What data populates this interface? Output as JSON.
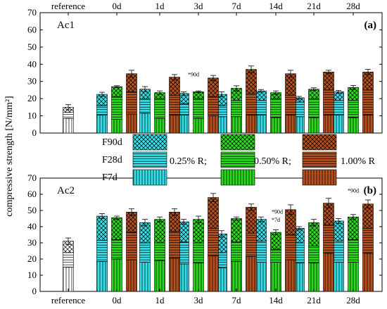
{
  "figure": {
    "ylabel": "compressive strength [N/mm²]",
    "groups": [
      "reference",
      "0d",
      "1d",
      "3d",
      "7d",
      "14d",
      "21d",
      "28d"
    ],
    "ylim": [
      0,
      70
    ],
    "yticks": [
      0,
      10,
      20,
      30,
      40,
      50,
      60,
      70
    ],
    "colors": {
      "0.25%R": "#33e0ea",
      "0.50%R": "#2ad81c",
      "1.00%R": "#b5501e",
      "reference": "#ffffff"
    }
  },
  "legend": {
    "rows": [
      "F90d",
      "F28d",
      "F7d"
    ],
    "items": [
      {
        "key": "0.25%R",
        "label": "0.25% R;"
      },
      {
        "key": "0.50%R",
        "label": "0.50% R;"
      },
      {
        "key": "1.00%R",
        "label": "1.00% R"
      }
    ]
  },
  "chart_data": [
    {
      "type": "bar",
      "stacked": true,
      "title": "Ac1",
      "panel_tag": "(a)",
      "categories": [
        "reference",
        "0d",
        "1d",
        "3d",
        "7d",
        "14d",
        "21d",
        "28d"
      ],
      "series": [
        {
          "name": "reference",
          "values": {
            "F7d": [
              8.5
            ],
            "F28d": [
              12
            ],
            "F90d": [
              15
            ]
          },
          "err": [
            1.5
          ]
        },
        {
          "name": "0.25% R",
          "values": {
            "F7d": [
              null,
              10.5,
              11.5,
              10.5,
              9.5,
              10.5,
              9.5,
              10.5
            ],
            "F28d": [
              null,
              16,
              20,
              17,
              16,
              19,
              18,
              19
            ],
            "F90d": [
              null,
              22.5,
              25.5,
              23,
              22.5,
              24.5,
              20.5,
              24
            ]
          },
          "err": [
            null,
            1.2,
            1.5,
            1,
            1.5,
            0.8,
            0.8,
            0.8
          ]
        },
        {
          "name": "0.50% R",
          "values": {
            "F7d": [
              null,
              8,
              8.5,
              8.5,
              9.5,
              9,
              9,
              9
            ],
            "F28d": [
              null,
              21,
              20,
              20,
              19,
              20,
              20,
              19
            ],
            "F90d": [
              null,
              27,
              23.5,
              24,
              26,
              23.5,
              25.5,
              26.5
            ]
          },
          "err": [
            null,
            0.5,
            1,
            0.5,
            1.5,
            1,
            0.8,
            1.2
          ]
        },
        {
          "name": "1.00% R",
          "values": {
            "F7d": [
              null,
              11,
              10.5,
              10,
              10.5,
              10.5,
              10.5,
              10.5
            ],
            "F28d": [
              null,
              24,
              22,
              21,
              23,
              22,
              25,
              25
            ],
            "F90d": [
              null,
              34.5,
              32.5,
              32,
              37,
              34.5,
              35.5,
              35.5
            ]
          },
          "err": [
            null,
            2,
            1.5,
            1.5,
            2,
            2,
            1,
            1.5
          ]
        }
      ],
      "annotations": [
        {
          "text": "*90d",
          "category": "3d",
          "value": 33
        }
      ]
    },
    {
      "type": "bar",
      "stacked": true,
      "title": "Ac2",
      "panel_tag": "(b)",
      "categories": [
        "reference",
        "0d",
        "1d",
        "3d",
        "7d",
        "14d",
        "21d",
        "28d"
      ],
      "series": [
        {
          "name": "reference",
          "values": {
            "F7d": [
              15
            ],
            "F28d": [
              24
            ],
            "F90d": [
              31
            ]
          },
          "err": [
            2
          ]
        },
        {
          "name": "0.25% R",
          "values": {
            "F7d": [
              null,
              18.5,
              18,
              17,
              14.5,
              18,
              17.5,
              18
            ],
            "F28d": [
              null,
              31.5,
              30,
              30.5,
              24,
              31,
              30,
              31
            ],
            "F90d": [
              null,
              46.5,
              42.5,
              43,
              35.5,
              44.5,
              39,
              43.5
            ]
          },
          "err": [
            null,
            1.5,
            2,
            1.5,
            2,
            1.5,
            1,
            1.5
          ]
        },
        {
          "name": "0.50% R",
          "values": {
            "F7d": [
              null,
              20,
              19,
              17.5,
              18.5,
              18,
              17.5,
              18
            ],
            "F28d": [
              null,
              32,
              30,
              30,
              30.5,
              26,
              28,
              32
            ],
            "F90d": [
              null,
              45.5,
              44.5,
              44.5,
              45,
              36.5,
              42.5,
              46
            ]
          },
          "err": [
            null,
            1,
            1.5,
            2,
            1,
            1.5,
            2,
            1.5
          ]
        },
        {
          "name": "1.00% R",
          "values": {
            "F7d": [
              null,
              19.5,
              20.5,
              22,
              21.5,
              19.5,
              23.5,
              23.5
            ],
            "F28d": [
              null,
              36.5,
              37,
              39,
              36,
              35,
              41,
              39
            ],
            "F90d": [
              null,
              49,
              49,
              58,
              52,
              50.5,
              54.5,
              54
            ]
          },
          "err": [
            null,
            2,
            2,
            2.5,
            2,
            3,
            3,
            2.5
          ]
        }
      ],
      "annotations": [
        {
          "text": "*90d",
          "category": "14d",
          "value": 48
        },
        {
          "text": "*7d",
          "category": "14d",
          "value": 43
        },
        {
          "text": "*90d",
          "category": "28d",
          "value": 61
        }
      ]
    }
  ]
}
